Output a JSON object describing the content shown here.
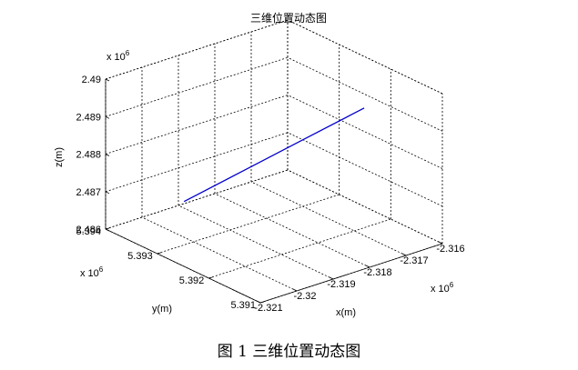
{
  "chart_data": {
    "type": "line3d",
    "title": "三维位置动态图",
    "xlabel": "x(m)",
    "ylabel": "y(m)",
    "zlabel": "z(m)",
    "x_ticks": [
      "-2.321",
      "-2.32",
      "-2.319",
      "-2.318",
      "-2.317",
      "-2.316"
    ],
    "y_ticks": [
      "5.391",
      "5.392",
      "5.393",
      "5.394"
    ],
    "z_ticks": [
      "2.486",
      "2.487",
      "2.488",
      "2.489",
      "2.49"
    ],
    "x_exponent": "x 10",
    "x_exponent_power": "6",
    "y_exponent": "x 10",
    "y_exponent_power": "6",
    "z_exponent": "x 10",
    "z_exponent_power": "6",
    "xlim": [
      -2321000,
      -2316000
    ],
    "ylim": [
      5391000,
      5394000
    ],
    "zlim": [
      2486000,
      2490000
    ],
    "grid": true,
    "line_color": "#0000cc",
    "series": [
      {
        "x": [
          -2319200,
          -2318500,
          -2317800,
          -2317100
        ],
        "y": [
          5393750,
          5393080,
          5392410,
          5391740
        ],
        "z": [
          2486330,
          2487380,
          2488430,
          2489480
        ]
      }
    ]
  },
  "caption": "图 1  三维位置动态图"
}
